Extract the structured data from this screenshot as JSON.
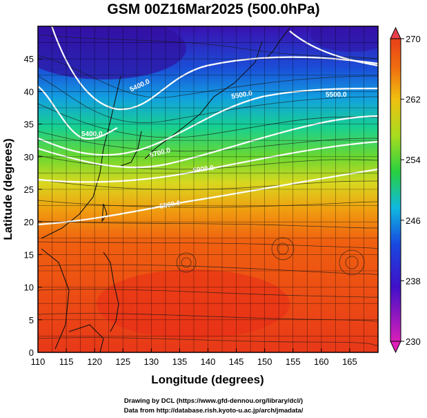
{
  "title": "GSM 00Z16Mar2025 (500.0hPa)",
  "x_axis": {
    "label": "Longitude (degrees)",
    "range": [
      110,
      170
    ],
    "ticks": [
      "110",
      "115",
      "120",
      "125",
      "130",
      "135",
      "140",
      "145",
      "150",
      "155",
      "160",
      "165"
    ]
  },
  "y_axis": {
    "label": "Latitude (degrees)",
    "range": [
      0,
      50
    ],
    "ticks": [
      "0",
      "5",
      "10",
      "15",
      "20",
      "25",
      "30",
      "35",
      "40",
      "45"
    ]
  },
  "colorbar": {
    "range": [
      230,
      270
    ],
    "ticks": [
      "230",
      "238",
      "246",
      "254",
      "262",
      "270"
    ],
    "colors": [
      "#d01fb0",
      "#3a10c0",
      "#1a55e0",
      "#10b4dc",
      "#30d050",
      "#9edc20",
      "#f0c810",
      "#f07010",
      "#e8401a"
    ]
  },
  "contours": [
    {
      "label": "5400.0"
    },
    {
      "label": "5400.0"
    },
    {
      "label": "5500.0"
    },
    {
      "label": "5500.0"
    },
    {
      "label": "5700.0"
    },
    {
      "label": "5800.0"
    },
    {
      "label": "5900.0"
    }
  ],
  "footer": {
    "line1": "Drawing by DCL (https://www.gfd-dennou.org/library/dcl/)",
    "line2": "Data from http://database.rish.kyoto-u.ac.jp/arch/jmadata/"
  }
}
